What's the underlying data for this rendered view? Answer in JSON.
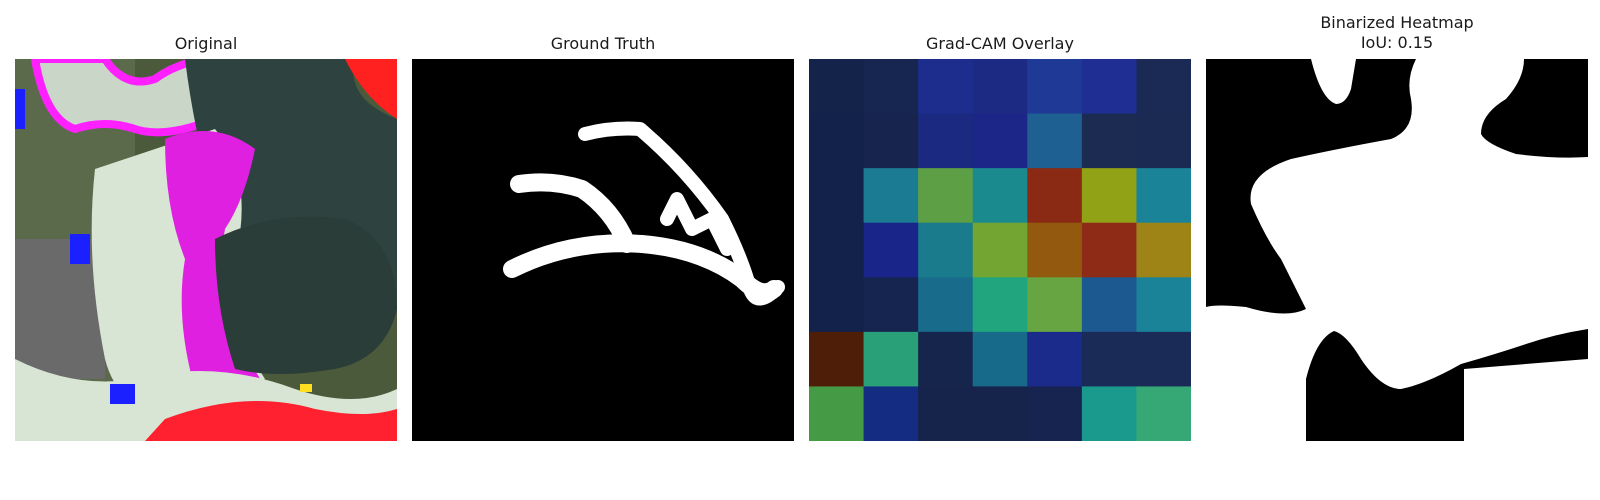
{
  "panels": {
    "original": {
      "title": "Original"
    },
    "ground_truth": {
      "title": "Ground Truth"
    },
    "gradcam": {
      "title": "Grad-CAM Overlay",
      "grid": [
        [
          "#13234a",
          "#172650",
          "#1c2d8e",
          "#1d2a84",
          "#1f3a96",
          "#1e2e93",
          "#1b2a55"
        ],
        [
          "#13224a",
          "#16244e",
          "#1b2a80",
          "#1c2689",
          "#1e6091",
          "#1b2b52",
          "#1b2a52"
        ],
        [
          "#13224a",
          "#1a7b92",
          "#5d9f45",
          "#1b8a8e",
          "#8a2a15",
          "#92a216",
          "#1b8398"
        ],
        [
          "#13224a",
          "#1a2589",
          "#1a7b8c",
          "#73a532",
          "#93590f",
          "#8d2b16",
          "#9e8416"
        ],
        [
          "#13224a",
          "#152550",
          "#196b8c",
          "#21a57e",
          "#67a542",
          "#1c5990",
          "#1b8398"
        ],
        [
          "#4e1e09",
          "#2aa079",
          "#16254c",
          "#186a8a",
          "#1b2b8c",
          "#1b2b57",
          "#1b2b57"
        ],
        [
          "#459a45",
          "#152c83",
          "#16234a",
          "#16234a",
          "#182450",
          "#1a9a8c",
          "#36a876"
        ]
      ]
    },
    "binarized": {
      "title": "Binarized Heatmap",
      "subtitle": "IoU: 0.15"
    }
  }
}
